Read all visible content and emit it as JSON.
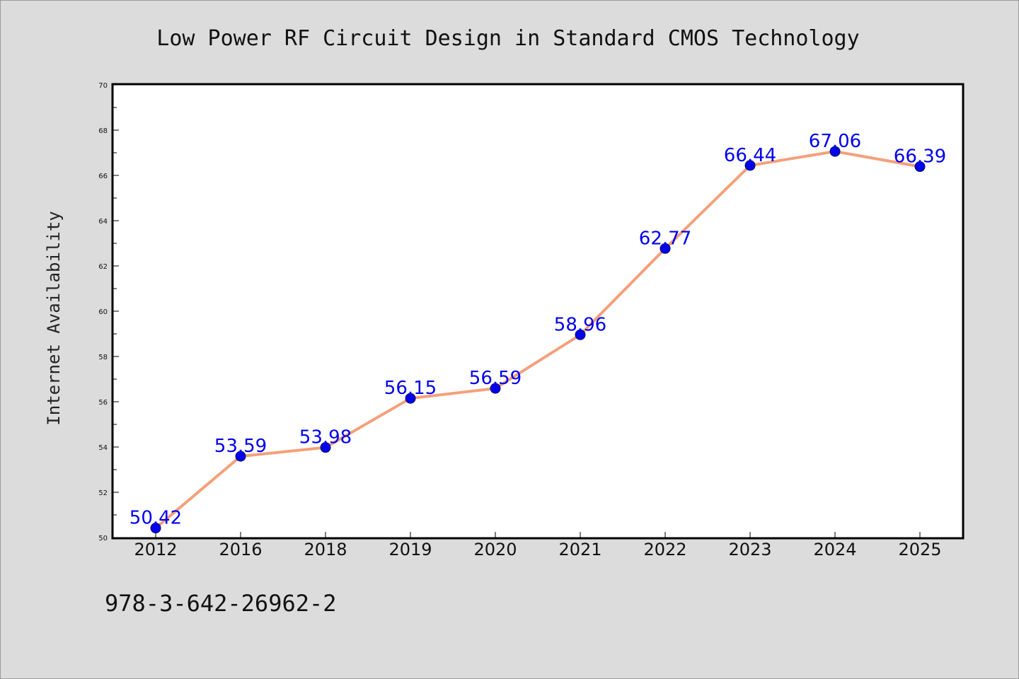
{
  "chart_data": {
    "type": "line",
    "title": "Low Power RF Circuit Design in Standard CMOS Technology",
    "ylabel": "Internet Availability",
    "xlabel": "",
    "categories": [
      "2012",
      "2016",
      "2018",
      "2019",
      "2020",
      "2021",
      "2022",
      "2023",
      "2024",
      "2025"
    ],
    "series": [
      {
        "values": [
          50.42,
          53.59,
          53.98,
          56.15,
          56.59,
          58.96,
          62.77,
          66.44,
          67.06,
          66.39
        ],
        "data_labels": [
          "50.42",
          "53.59",
          "53.98",
          "56.15",
          "56.59",
          "58.96",
          "62.77",
          "66.44",
          "67.06",
          "66.39"
        ]
      }
    ],
    "ylim": [
      50,
      70
    ],
    "y_ticks": [
      "50",
      "52",
      "54",
      "56",
      "58",
      "60",
      "62",
      "64",
      "66",
      "68",
      "70"
    ],
    "grid": false,
    "legend": "none",
    "colors": {
      "line": "#f4a07a",
      "marker": "#0000ee",
      "marker_edge": "#0a0a5a",
      "label": "#0000ee",
      "plot_bg": "#ffffff",
      "page_bg": "#dcdcdc"
    }
  },
  "footer": {
    "text": "978-3-642-26962-2"
  }
}
